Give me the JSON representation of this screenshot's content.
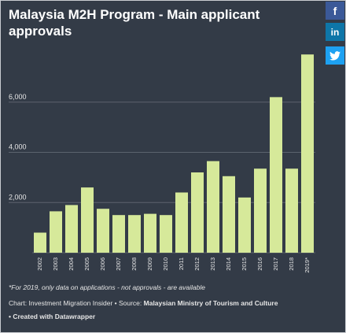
{
  "title": "Malaysia M2H Program - Main applicant approvals",
  "social": {
    "facebook_icon": "f",
    "linkedin_icon": "in",
    "twitter_icon": "🐦"
  },
  "colors": {
    "background": "#333b47",
    "bar": "#d6e99a",
    "grid": "#5c636e",
    "text": "#e6e6e6"
  },
  "chart_data": {
    "type": "bar",
    "title": "Malaysia M2H Program - Main applicant approvals",
    "xlabel": "",
    "ylabel": "",
    "categories": [
      "2002",
      "2003",
      "2004",
      "2005",
      "2006",
      "2007",
      "2008",
      "2009",
      "2010",
      "2011",
      "2012",
      "2013",
      "2014",
      "2015",
      "2016",
      "2017",
      "2018",
      "2019*"
    ],
    "values": [
      800,
      1650,
      1900,
      2600,
      1750,
      1500,
      1500,
      1550,
      1500,
      2400,
      3200,
      3650,
      3050,
      2200,
      3350,
      6200,
      3350,
      7900
    ],
    "ylim": [
      0,
      8000
    ],
    "yticks": [
      2000,
      4000,
      6000
    ],
    "ytick_labels": [
      "2,000",
      "4,000",
      "6,000"
    ],
    "grid": true,
    "legend": "none"
  },
  "footnote": "*For 2019, only data on applications - not approvals - are available",
  "credit": {
    "prefix": "Chart: Investment Migration Insider • Source: ",
    "source": "Malaysian Ministry of Tourism and Culture",
    "created": "• Created with Datawrapper"
  }
}
